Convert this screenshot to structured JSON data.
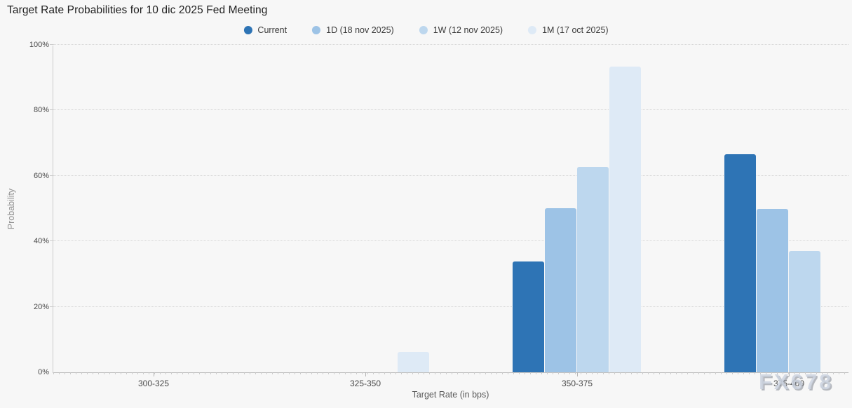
{
  "title": "Target Rate Probabilities for 10 dic 2025 Fed Meeting",
  "watermark": "FX678",
  "legend": [
    {
      "label": "Current",
      "color": "#2e74b5"
    },
    {
      "label": "1D (18 nov 2025)",
      "color": "#9dc3e6"
    },
    {
      "label": "1W (12 nov 2025)",
      "color": "#bdd7ee"
    },
    {
      "label": "1M (17 oct 2025)",
      "color": "#deeaf6"
    }
  ],
  "chart_data": {
    "type": "bar",
    "title": "Target Rate Probabilities for 10 dic 2025 Fed Meeting",
    "categories": [
      "300-325",
      "325-350",
      "350-375",
      "375-400"
    ],
    "series": [
      {
        "name": "Current",
        "color": "#2e74b5",
        "values": [
          0,
          0,
          33.8,
          66.6
        ]
      },
      {
        "name": "1D (18 nov 2025)",
        "color": "#9dc3e6",
        "values": [
          0,
          0,
          50.1,
          49.9
        ]
      },
      {
        "name": "1W (12 nov 2025)",
        "color": "#bdd7ee",
        "values": [
          0,
          0,
          62.7,
          37.0
        ]
      },
      {
        "name": "1M (17 oct 2025)",
        "color": "#deeaf6",
        "values": [
          0,
          6.2,
          93.4,
          0
        ]
      }
    ],
    "xlabel": "Target Rate (in bps)",
    "ylabel": "Probability",
    "ylim": [
      0,
      100
    ],
    "yticks": [
      "0%",
      "20%",
      "40%",
      "60%",
      "80%",
      "100%"
    ],
    "ytick_values": [
      0,
      20,
      40,
      60,
      80,
      100
    ],
    "grid": "horizontal-dotted",
    "legend_position": "top-center"
  }
}
